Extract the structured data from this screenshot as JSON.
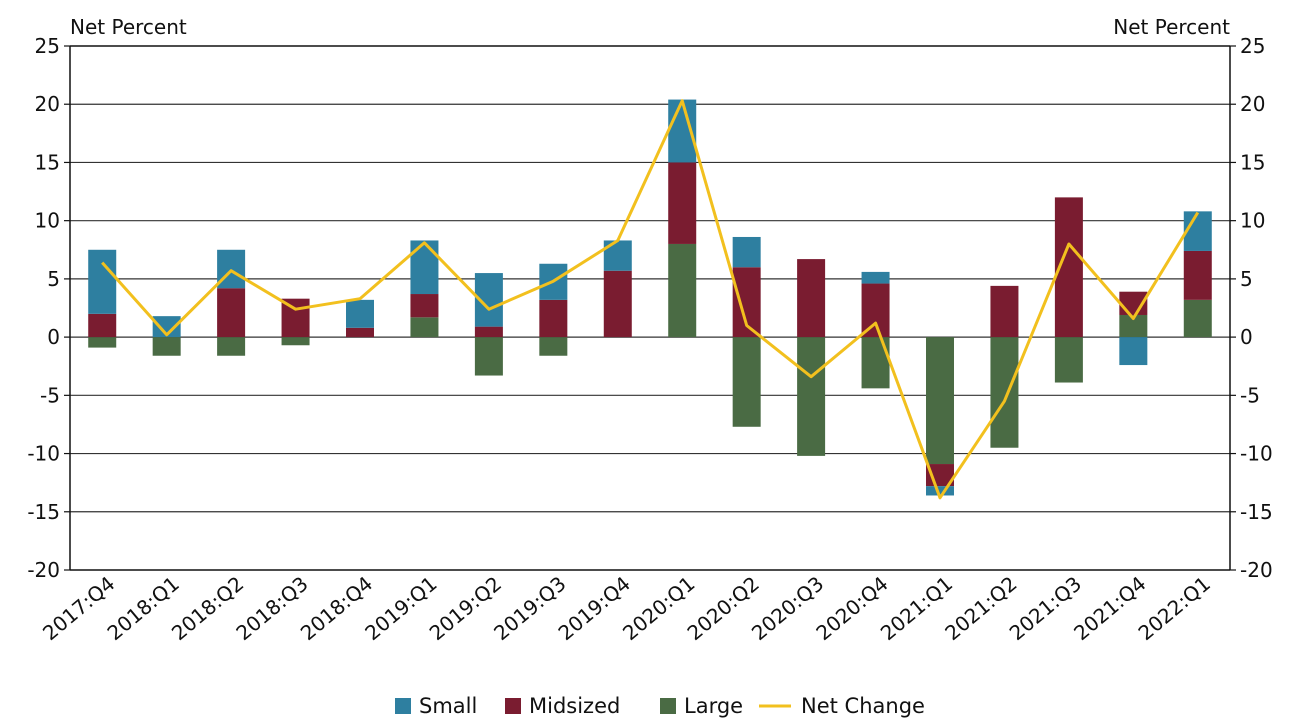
{
  "chart_data": {
    "type": "bar",
    "stacked": true,
    "y_axis_left_title": "Net Percent",
    "y_axis_right_title": "Net Percent",
    "ylim": [
      -20,
      25
    ],
    "y_ticks": [
      25,
      20,
      15,
      10,
      5,
      0,
      -5,
      -10,
      -15,
      -20
    ],
    "grid": true,
    "legend_position": "bottom",
    "categories": [
      "2017:Q4",
      "2018:Q1",
      "2018:Q2",
      "2018:Q3",
      "2018:Q4",
      "2019:Q1",
      "2019:Q2",
      "2019:Q3",
      "2019:Q4",
      "2020:Q1",
      "2020:Q2",
      "2020:Q3",
      "2020:Q4",
      "2021:Q1",
      "2021:Q2",
      "2021:Q3",
      "2021:Q4",
      "2022:Q1"
    ],
    "series": [
      {
        "name": "Small",
        "type": "bar",
        "color": "#2e7fa0",
        "values": [
          5.5,
          1.8,
          3.3,
          0.0,
          2.4,
          4.6,
          4.6,
          3.1,
          2.6,
          5.4,
          2.6,
          0.0,
          1.0,
          -0.8,
          0.0,
          0.0,
          -2.4,
          3.4
        ]
      },
      {
        "name": "Midsized",
        "type": "bar",
        "color": "#7a1c30",
        "values": [
          2.0,
          0.0,
          4.2,
          3.3,
          0.8,
          2.0,
          0.9,
          3.2,
          5.7,
          7.0,
          6.0,
          6.7,
          4.6,
          -1.9,
          4.4,
          12.0,
          2.0,
          4.2
        ]
      },
      {
        "name": "Large",
        "type": "bar",
        "color": "#4a6b44",
        "values": [
          -0.9,
          -1.6,
          -1.6,
          -0.7,
          0.0,
          1.7,
          -3.3,
          -1.6,
          0.0,
          8.0,
          -7.7,
          -10.2,
          -4.4,
          -10.9,
          -9.5,
          -3.9,
          1.9,
          3.2
        ]
      },
      {
        "name": "Net Change",
        "type": "line",
        "color": "#f2c01e",
        "values": [
          6.4,
          0.2,
          5.7,
          2.4,
          3.3,
          8.1,
          2.4,
          4.8,
          8.3,
          20.3,
          1.0,
          -3.4,
          1.2,
          -13.8,
          -5.5,
          8.0,
          1.6,
          10.7
        ]
      }
    ]
  }
}
